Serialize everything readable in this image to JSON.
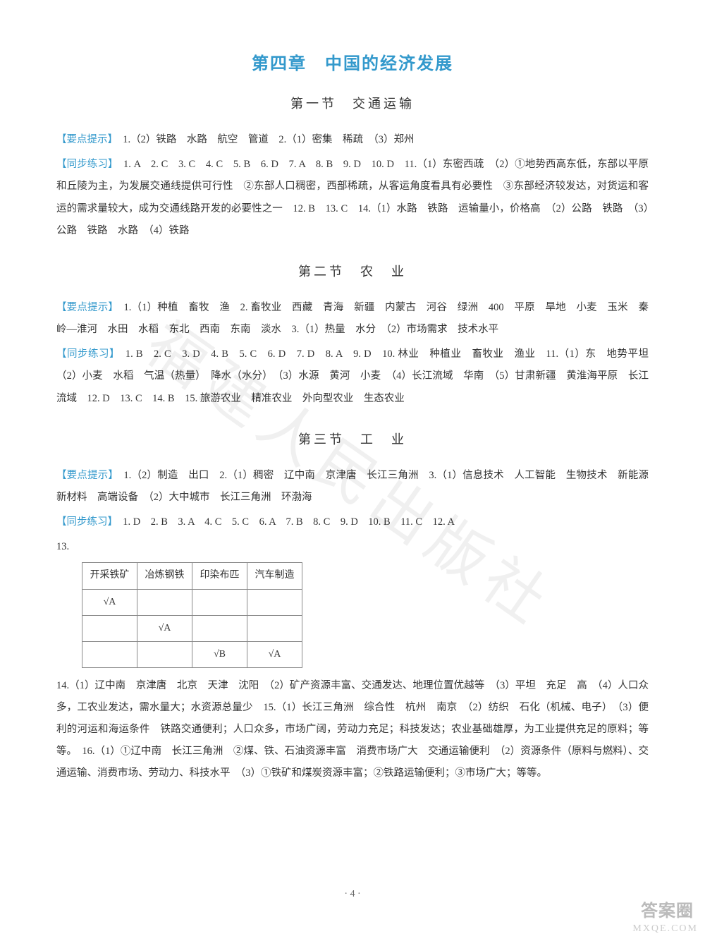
{
  "watermark": "福建人民出版社",
  "chapter": "第四章　中国的经济发展",
  "sections": [
    {
      "title": "第一节　交通运输",
      "blocks": [
        {
          "label": "【要点提示】",
          "text": "　1.（2）铁路　水路　航空　管道　2.（1）密集　稀疏　（3）郑州"
        },
        {
          "label": "【同步练习】",
          "text": "　1. A　2. C　3. C　4. C　5. B　6. D　7. A　8. B　9. D　10. D　11.（1）东密西疏　（2）①地势西高东低，东部以平原和丘陵为主，为发展交通线提供可行性　②东部人口稠密，西部稀疏，从客运角度看具有必要性　③东部经济较发达，对货运和客运的需求量较大，成为交通线路开发的必要性之一　12. B　13. C　14.（1）水路　铁路　运输量小，价格高　（2）公路　铁路　（3）公路　铁路　水路　（4）铁路"
        }
      ]
    },
    {
      "title": "第二节　农　业",
      "blocks": [
        {
          "label": "【要点提示】",
          "text": "　1.（1）种植　畜牧　渔　2. 畜牧业　西藏　青海　新疆　内蒙古　河谷　绿洲　400　平原　旱地　小麦　玉米　秦岭—淮河　水田　水稻　东北　西南　东南　淡水　3.（1）热量　水分　（2）市场需求　技术水平"
        },
        {
          "label": "【同步练习】",
          "text": "　1. B　2. C　3. D　4. B　5. C　6. D　7. D　8. A　9. D　10. 林业　种植业　畜牧业　渔业　11.（1）东　地势平坦　（2）小麦　水稻　气温（热量）　降水（水分）　（3）水源　黄河　小麦　（4）长江流域　华南　（5）甘肃新疆　黄淮海平原　长江流域　12. D　13. C　14. B　15. 旅游农业　精准农业　外向型农业　生态农业"
        }
      ]
    },
    {
      "title": "第三节　工　业",
      "blocks": [
        {
          "label": "【要点提示】",
          "text": "　1.（2）制造　出口　2.（1）稠密　辽中南　京津唐　长江三角洲　3.（1）信息技术　人工智能　生物技术　新能源　新材料　高端设备　（2）大中城市　长江三角洲　环渤海"
        },
        {
          "label": "【同步练习】",
          "text": "　1. D　2. B　3. A　4. C　5. C　6. A　7. B　8. C　9. D　10. B　11. C　12. A"
        }
      ],
      "q13": {
        "label": "13.",
        "table": {
          "headers": [
            "开采铁矿",
            "冶炼钢铁",
            "印染布匹",
            "汽车制造"
          ],
          "rows": [
            [
              "√A",
              "",
              "",
              ""
            ],
            [
              "",
              "√A",
              "",
              ""
            ],
            [
              "",
              "",
              "√B",
              "√A"
            ]
          ]
        }
      },
      "after_table": {
        "text": "14.（1）辽中南　京津唐　北京　天津　沈阳　（2）矿产资源丰富、交通发达、地理位置优越等　（3）平坦　充足　高　（4）人口众多，工农业发达，需水量大；水资源总量少　15.（1）长江三角洲　综合性　杭州　南京　（2）纺织　石化（机械、电子）　（3）便利的河运和海运条件　铁路交通便利；人口众多，市场广阔，劳动力充足；科技发达；农业基础雄厚，为工业提供充足的原料；等等。　16.（1）①辽中南　长江三角洲　②煤、铁、石油资源丰富　消费市场广大　交通运输便利　（2）资源条件（原料与燃料）、交通运输、消费市场、劳动力、科技水平　（3）①铁矿和煤炭资源丰富；②铁路运输便利；③市场广大；等等。"
      }
    }
  ],
  "page_no": "· 4 ·",
  "brand": {
    "line1": "答案圈",
    "line2": "MXQE.COM"
  }
}
